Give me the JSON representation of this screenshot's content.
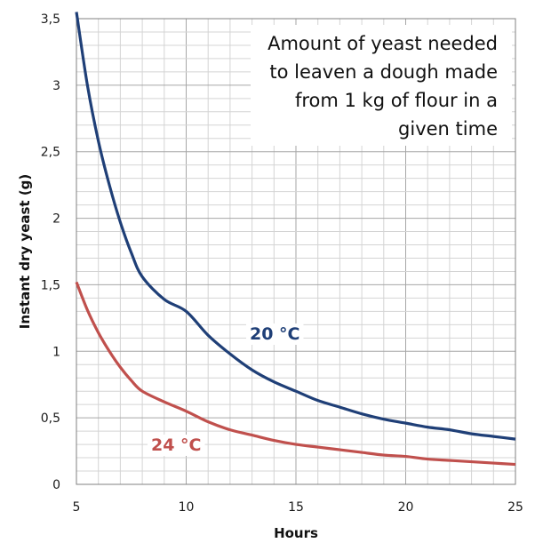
{
  "chart_data": {
    "type": "line",
    "title": "Amount of yeast needed to leaven a dough made from 1 kg of flour in a given time",
    "title_lines": [
      "Amount of yeast needed",
      "to leaven a dough made",
      "from 1 kg of flour in a",
      "given time"
    ],
    "xlabel": "Hours",
    "ylabel": "Instant dry yeast (g)",
    "xlim": [
      5,
      25
    ],
    "ylim": [
      0,
      3.5
    ],
    "xticks": [
      "5",
      "10",
      "15",
      "20",
      "25"
    ],
    "yticks": [
      "0",
      "0,5",
      "1",
      "1,5",
      "2",
      "2,5",
      "3",
      "3,5"
    ],
    "grid": true,
    "legend": "inline labels",
    "series": [
      {
        "name": "20 °C",
        "color": "#1f3f77",
        "x": [
          5,
          5.5,
          6,
          6.5,
          7,
          7.5,
          8,
          9,
          10,
          11,
          12,
          13,
          14,
          15,
          16,
          17,
          18,
          19,
          20,
          21,
          22,
          23,
          24,
          25
        ],
        "y": [
          3.55,
          3.0,
          2.58,
          2.25,
          1.97,
          1.74,
          1.56,
          1.39,
          1.3,
          1.12,
          0.98,
          0.86,
          0.77,
          0.7,
          0.63,
          0.58,
          0.53,
          0.49,
          0.46,
          0.43,
          0.41,
          0.38,
          0.36,
          0.34
        ]
      },
      {
        "name": "24 °C",
        "color": "#c0504d",
        "x": [
          5,
          5.5,
          6,
          6.5,
          7,
          7.5,
          8,
          9,
          10,
          11,
          12,
          13,
          14,
          15,
          16,
          17,
          18,
          19,
          20,
          21,
          22,
          23,
          24,
          25
        ],
        "y": [
          1.52,
          1.31,
          1.14,
          1.0,
          0.88,
          0.78,
          0.7,
          0.62,
          0.55,
          0.47,
          0.41,
          0.37,
          0.33,
          0.3,
          0.28,
          0.26,
          0.24,
          0.22,
          0.21,
          0.19,
          0.18,
          0.17,
          0.16,
          0.15
        ]
      }
    ]
  }
}
